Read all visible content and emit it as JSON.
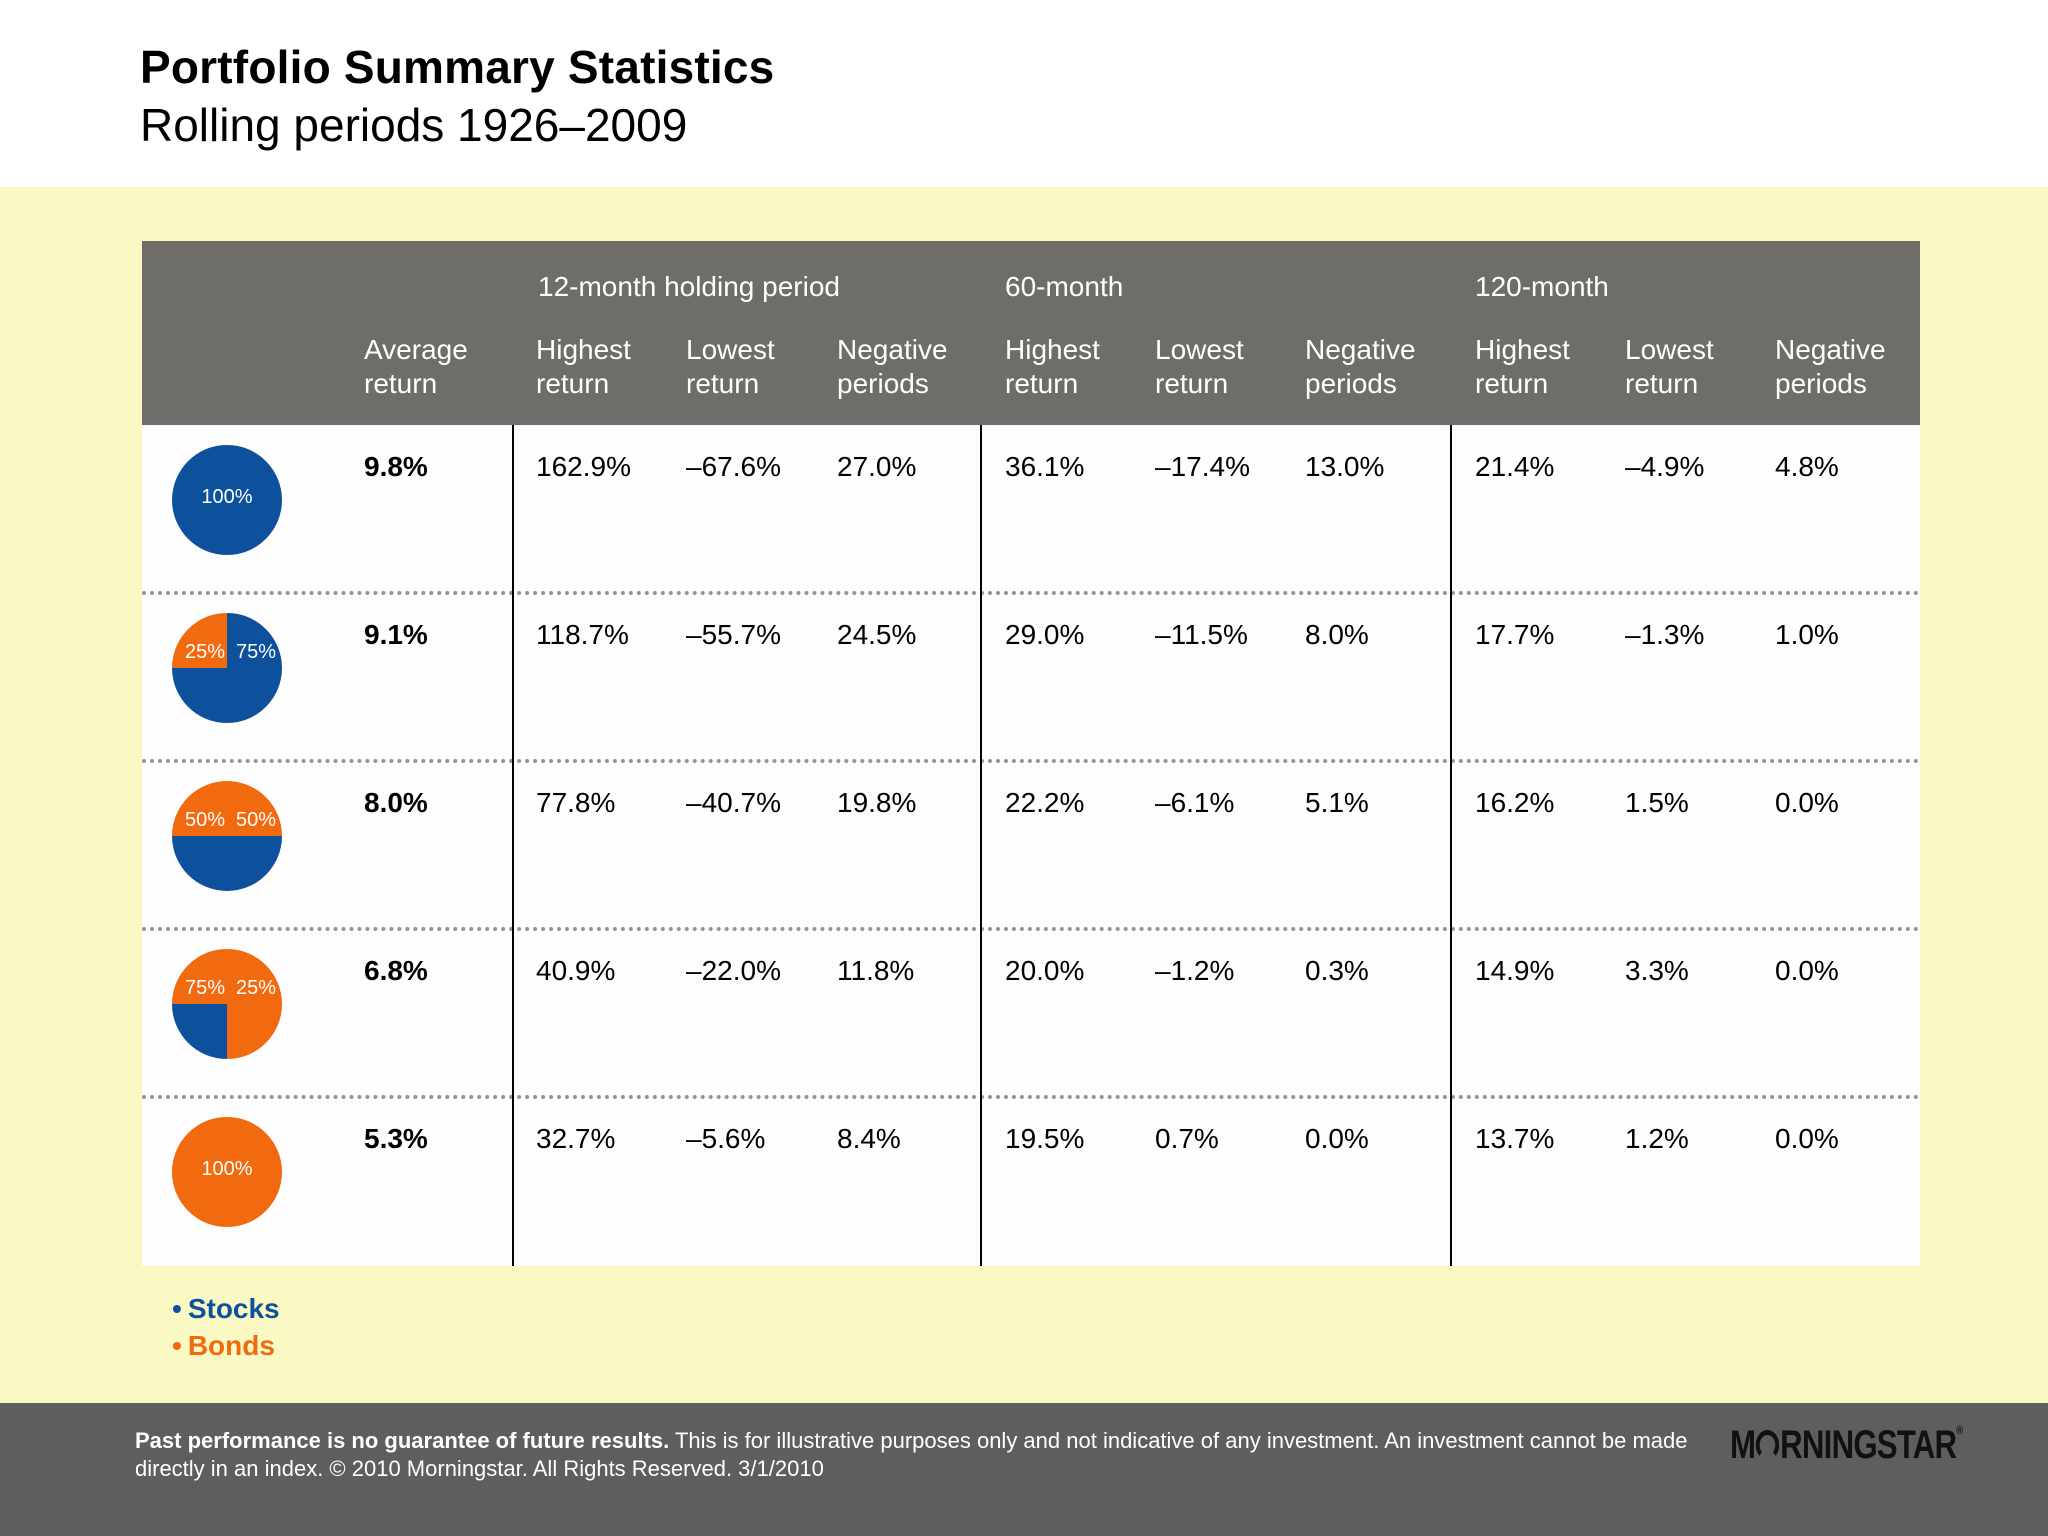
{
  "header": {
    "title": "Portfolio Summary Statistics",
    "subtitle": "Rolling periods 1926–2009"
  },
  "colors": {
    "stocks": "#0d519c",
    "bonds": "#f26a0f",
    "header_bg": "#6e6d69",
    "band_bg": "#faf9c4",
    "footer_bg": "#5e5e60"
  },
  "chart_data": {
    "type": "table",
    "group_headers": [
      "12-month holding period",
      "60-month",
      "120-month"
    ],
    "column_headers": [
      [
        "Average",
        "return"
      ],
      [
        "Highest",
        "return"
      ],
      [
        "Lowest",
        "return"
      ],
      [
        "Negative",
        "periods"
      ],
      [
        "Highest",
        "return"
      ],
      [
        "Lowest",
        "return"
      ],
      [
        "Negative",
        "periods"
      ],
      [
        "Highest",
        "return"
      ],
      [
        "Lowest",
        "return"
      ],
      [
        "Negative",
        "periods"
      ]
    ],
    "rows": [
      {
        "stocks_pct": 100,
        "bonds_pct": 0,
        "labels": [
          "100%"
        ],
        "values": [
          "9.8%",
          "162.9%",
          "–67.6%",
          "27.0%",
          "36.1%",
          "–17.4%",
          "13.0%",
          "21.4%",
          "–4.9%",
          "4.8%"
        ]
      },
      {
        "stocks_pct": 75,
        "bonds_pct": 25,
        "labels": [
          "25%",
          "75%"
        ],
        "values": [
          "9.1%",
          "118.7%",
          "–55.7%",
          "24.5%",
          "29.0%",
          "–11.5%",
          "8.0%",
          "17.7%",
          "–1.3%",
          "1.0%"
        ]
      },
      {
        "stocks_pct": 50,
        "bonds_pct": 50,
        "labels": [
          "50%",
          "50%"
        ],
        "values": [
          "8.0%",
          "77.8%",
          "–40.7%",
          "19.8%",
          "22.2%",
          "–6.1%",
          "5.1%",
          "16.2%",
          "1.5%",
          "0.0%"
        ]
      },
      {
        "stocks_pct": 25,
        "bonds_pct": 75,
        "labels": [
          "75%",
          "25%"
        ],
        "values": [
          "6.8%",
          "40.9%",
          "–22.0%",
          "11.8%",
          "20.0%",
          "–1.2%",
          "0.3%",
          "14.9%",
          "3.3%",
          "0.0%"
        ]
      },
      {
        "stocks_pct": 0,
        "bonds_pct": 100,
        "labels": [
          "100%"
        ],
        "values": [
          "5.3%",
          "32.7%",
          "–5.6%",
          "8.4%",
          "19.5%",
          "0.7%",
          "0.0%",
          "13.7%",
          "1.2%",
          "0.0%"
        ]
      }
    ],
    "legend": [
      {
        "label": "Stocks",
        "color": "#0d519c"
      },
      {
        "label": "Bonds",
        "color": "#f26a0f"
      }
    ]
  },
  "footer": {
    "disclaimer_bold": "Past performance is no guarantee of future results.",
    "disclaimer_text": " This is for illustrative purposes only and not indicative of any investment. An investment cannot be made directly in an index. © 2010 Morningstar. All Rights Reserved. 3/1/2010",
    "logo_text_a": "M",
    "logo_text_b": "RNINGSTAR",
    "logo_mark": "®"
  }
}
